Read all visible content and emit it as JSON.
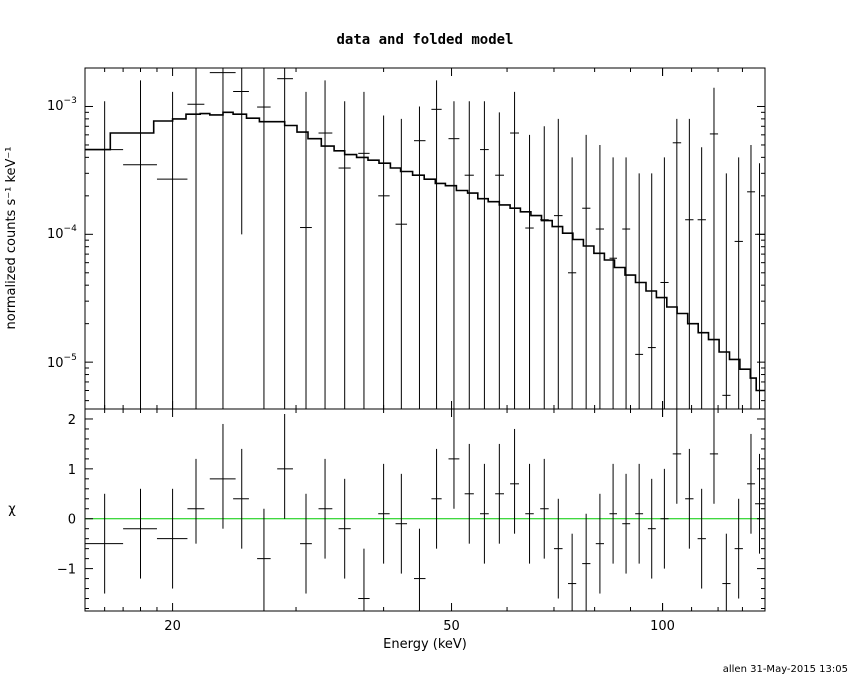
{
  "title": "data and folded model",
  "footer": "allen 31-May-2015 13:05",
  "colors": {
    "model": "#000000",
    "data": "#000000",
    "zero_line": "#00cc00",
    "frame": "#000000"
  },
  "chart_data": [
    {
      "type": "line",
      "panel": "top",
      "xlabel": "Energy (keV)",
      "ylabel": "normalized counts s⁻¹ keV⁻¹",
      "xscale": "log",
      "yscale": "log",
      "xlim": [
        15,
        140
      ],
      "ylim": [
        4.3e-06,
        0.002
      ],
      "ytick_labels": [
        {
          "value": 0.001,
          "mantissa": "10",
          "exp": "−3"
        },
        {
          "value": 0.0001,
          "mantissa": "10",
          "exp": "−4"
        },
        {
          "value": 1e-05,
          "mantissa": "10",
          "exp": "−5"
        }
      ],
      "model_steps": [
        [
          15.0,
          0.00046
        ],
        [
          16.3,
          0.00062
        ],
        [
          17.6,
          0.00062
        ],
        [
          18.8,
          0.00077
        ],
        [
          20.0,
          0.0008
        ],
        [
          20.9,
          0.00087
        ],
        [
          21.9,
          0.00088
        ],
        [
          22.6,
          0.00086
        ],
        [
          23.6,
          0.0009
        ],
        [
          24.4,
          0.00087
        ],
        [
          25.5,
          0.00081
        ],
        [
          26.6,
          0.00076
        ],
        [
          27.6,
          0.00076
        ],
        [
          28.9,
          0.00071
        ],
        [
          30.1,
          0.00063
        ],
        [
          31.2,
          0.00056
        ],
        [
          32.6,
          0.00049
        ],
        [
          34.0,
          0.00045
        ],
        [
          35.2,
          0.00042
        ],
        [
          36.6,
          0.0004
        ],
        [
          38.0,
          0.00038
        ],
        [
          39.4,
          0.00036
        ],
        [
          40.9,
          0.00033
        ],
        [
          42.3,
          0.00031
        ],
        [
          44.0,
          0.00029
        ],
        [
          45.7,
          0.00027
        ],
        [
          47.4,
          0.00025
        ],
        [
          49.0,
          0.00024
        ],
        [
          50.8,
          0.00022
        ],
        [
          52.7,
          0.00021
        ],
        [
          54.5,
          0.00019
        ],
        [
          56.4,
          0.00018
        ],
        [
          58.5,
          0.00017
        ],
        [
          60.6,
          0.00016
        ],
        [
          62.7,
          0.00015
        ],
        [
          64.9,
          0.00014
        ],
        [
          67.2,
          0.000128
        ],
        [
          69.6,
          0.000115
        ],
        [
          72.0,
          0.000102
        ],
        [
          74.5,
          9.1e-05
        ],
        [
          77.1,
          8.1e-05
        ],
        [
          79.8,
          7.1e-05
        ],
        [
          82.6,
          6.3e-05
        ],
        [
          85.4,
          5.5e-05
        ],
        [
          88.4,
          4.8e-05
        ],
        [
          91.5,
          4.2e-05
        ],
        [
          94.7,
          3.6e-05
        ],
        [
          98.0,
          3.2e-05
        ],
        [
          101.4,
          2.7e-05
        ],
        [
          104.9,
          2.4e-05
        ],
        [
          108.6,
          2e-05
        ],
        [
          112.4,
          1.7e-05
        ],
        [
          116.3,
          1.5e-05
        ],
        [
          120.4,
          1.2e-05
        ],
        [
          124.6,
          1.05e-05
        ],
        [
          128.9,
          8.8e-06
        ],
        [
          133.4,
          7.5e-06
        ],
        [
          136.0,
          6e-06
        ],
        [
          140.0,
          5e-06
        ]
      ],
      "points": [
        {
          "x": 16.0,
          "xlo": 15.0,
          "xhi": 17.0,
          "y": 0.00046,
          "ylo": 4.3e-06,
          "yhi": 0.0011
        },
        {
          "x": 18.0,
          "xlo": 17.0,
          "xhi": 19.0,
          "y": 0.00035,
          "ylo": 4.3e-06,
          "yhi": 0.0016
        },
        {
          "x": 20.0,
          "xlo": 19.0,
          "xhi": 21.0,
          "y": 0.00027,
          "ylo": 4.3e-06,
          "yhi": 0.0013
        },
        {
          "x": 21.6,
          "xlo": 21.0,
          "xhi": 22.2,
          "y": 0.00104,
          "ylo": 4.3e-06,
          "yhi": 0.002
        },
        {
          "x": 23.6,
          "xlo": 22.6,
          "xhi": 24.6,
          "y": 0.00184,
          "ylo": 4.3e-06,
          "yhi": 0.002
        },
        {
          "x": 25.1,
          "xlo": 24.4,
          "xhi": 25.7,
          "y": 0.00131,
          "ylo": 0.0001,
          "yhi": 0.002
        },
        {
          "x": 27.0,
          "xlo": 26.4,
          "xhi": 27.6,
          "y": 0.00099,
          "ylo": 4.3e-06,
          "yhi": 0.002
        },
        {
          "x": 28.9,
          "xlo": 28.2,
          "xhi": 29.7,
          "y": 0.00165,
          "ylo": 4.3e-06,
          "yhi": 0.002
        },
        {
          "x": 31.0,
          "xlo": 30.4,
          "xhi": 31.6,
          "y": 0.000113,
          "ylo": 4.3e-06,
          "yhi": 0.0013
        },
        {
          "x": 33.0,
          "xlo": 32.3,
          "xhi": 33.8,
          "y": 0.00062,
          "ylo": 4.3e-06,
          "yhi": 0.0016
        },
        {
          "x": 35.2,
          "xlo": 34.5,
          "xhi": 35.9,
          "y": 0.00033,
          "ylo": 4.3e-06,
          "yhi": 0.0011
        },
        {
          "x": 37.5,
          "xlo": 36.8,
          "xhi": 38.2,
          "y": 0.00043,
          "ylo": 4.3e-06,
          "yhi": 0.0013
        },
        {
          "x": 40.0,
          "xlo": 39.3,
          "xhi": 40.8,
          "y": 0.0002,
          "ylo": 4.3e-06,
          "yhi": 0.00085
        },
        {
          "x": 42.4,
          "xlo": 41.6,
          "xhi": 43.2,
          "y": 0.00012,
          "ylo": 4.3e-06,
          "yhi": 0.0008
        },
        {
          "x": 45.0,
          "xlo": 44.2,
          "xhi": 45.9,
          "y": 0.00054,
          "ylo": 4.3e-06,
          "yhi": 0.001
        },
        {
          "x": 47.6,
          "xlo": 46.8,
          "xhi": 48.4,
          "y": 0.00095,
          "ylo": 4.3e-06,
          "yhi": 0.0016
        },
        {
          "x": 50.4,
          "xlo": 49.5,
          "xhi": 51.3,
          "y": 0.00056,
          "ylo": 4.3e-06,
          "yhi": 0.0011
        },
        {
          "x": 53.0,
          "xlo": 52.2,
          "xhi": 53.8,
          "y": 0.00029,
          "ylo": 4.3e-06,
          "yhi": 0.0011
        },
        {
          "x": 55.7,
          "xlo": 54.9,
          "xhi": 56.5,
          "y": 0.00046,
          "ylo": 4.3e-06,
          "yhi": 0.0011
        },
        {
          "x": 58.5,
          "xlo": 57.7,
          "xhi": 59.4,
          "y": 0.00029,
          "ylo": 4.3e-06,
          "yhi": 0.0009
        },
        {
          "x": 61.5,
          "xlo": 60.6,
          "xhi": 62.4,
          "y": 0.00062,
          "ylo": 4.3e-06,
          "yhi": 0.0013
        },
        {
          "x": 64.6,
          "xlo": 63.7,
          "xhi": 65.5,
          "y": 0.000112,
          "ylo": 4.3e-06,
          "yhi": 0.0006
        },
        {
          "x": 67.8,
          "xlo": 66.9,
          "xhi": 68.8,
          "y": 0.00013,
          "ylo": 4.3e-06,
          "yhi": 0.0007
        },
        {
          "x": 71.0,
          "xlo": 70.0,
          "xhi": 72.0,
          "y": 0.00014,
          "ylo": 4.3e-06,
          "yhi": 0.0008
        },
        {
          "x": 74.3,
          "xlo": 73.3,
          "xhi": 75.3,
          "y": 5e-05,
          "ylo": 4.3e-06,
          "yhi": 0.0004
        },
        {
          "x": 77.8,
          "xlo": 76.8,
          "xhi": 78.9,
          "y": 0.00016,
          "ylo": 4.3e-06,
          "yhi": 0.0006
        },
        {
          "x": 81.4,
          "xlo": 80.3,
          "xhi": 82.5,
          "y": 0.00011,
          "ylo": 4.3e-06,
          "yhi": 0.0005
        },
        {
          "x": 85.0,
          "xlo": 84.0,
          "xhi": 86.1,
          "y": 6.5e-05,
          "ylo": 4.3e-06,
          "yhi": 0.0004
        },
        {
          "x": 88.7,
          "xlo": 87.6,
          "xhi": 89.9,
          "y": 0.00011,
          "ylo": 4.3e-06,
          "yhi": 0.0004
        },
        {
          "x": 92.6,
          "xlo": 91.4,
          "xhi": 93.8,
          "y": 1.15e-05,
          "ylo": 4.3e-06,
          "yhi": 0.0003
        },
        {
          "x": 96.5,
          "xlo": 95.3,
          "xhi": 97.8,
          "y": 1.3e-05,
          "ylo": 4.3e-06,
          "yhi": 0.0003
        },
        {
          "x": 100.6,
          "xlo": 99.3,
          "xhi": 102.0,
          "y": 4.2e-05,
          "ylo": 4.3e-06,
          "yhi": 0.0004
        },
        {
          "x": 104.8,
          "xlo": 103.4,
          "xhi": 106.3,
          "y": 0.00052,
          "ylo": 4.3e-06,
          "yhi": 0.0008
        },
        {
          "x": 109.2,
          "xlo": 107.7,
          "xhi": 110.7,
          "y": 0.00013,
          "ylo": 4.3e-06,
          "yhi": 0.0008
        },
        {
          "x": 113.7,
          "xlo": 112.2,
          "xhi": 115.3,
          "y": 0.00013,
          "ylo": 4.3e-06,
          "yhi": 0.00048
        },
        {
          "x": 118.4,
          "xlo": 116.8,
          "xhi": 120.0,
          "y": 0.00061,
          "ylo": 4.3e-06,
          "yhi": 0.0014
        },
        {
          "x": 123.3,
          "xlo": 121.7,
          "xhi": 125.0,
          "y": 5.5e-06,
          "ylo": 4.3e-06,
          "yhi": 0.0003
        },
        {
          "x": 128.4,
          "xlo": 126.7,
          "xhi": 130.2,
          "y": 8.8e-05,
          "ylo": 4.3e-06,
          "yhi": 0.0004
        },
        {
          "x": 133.7,
          "xlo": 132.0,
          "xhi": 135.5,
          "y": 0.000215,
          "ylo": 4.3e-06,
          "yhi": 0.0005
        },
        {
          "x": 137.5,
          "xlo": 135.5,
          "xhi": 140.0,
          "y": 0.0001,
          "ylo": 4.3e-06,
          "yhi": 0.00036
        }
      ]
    },
    {
      "type": "scatter",
      "panel": "bottom",
      "xlabel": "Energy (keV)",
      "ylabel": "χ",
      "xscale": "log",
      "xlim": [
        15,
        140
      ],
      "ylim": [
        -1.85,
        2.2
      ],
      "ytick_labels": [
        "2",
        "1",
        "0",
        "−1"
      ],
      "ytick_values": [
        2,
        1,
        0,
        -1
      ],
      "xtick_labels": [
        "20",
        "50",
        "100"
      ],
      "xtick_values": [
        20,
        50,
        100
      ],
      "zero_line": 0,
      "points": [
        {
          "x": 16.0,
          "xlo": 15.0,
          "xhi": 17.0,
          "y": -0.5,
          "ylo": -1.5,
          "yhi": 0.5
        },
        {
          "x": 18.0,
          "xlo": 17.0,
          "xhi": 19.0,
          "y": -0.2,
          "ylo": -1.2,
          "yhi": 0.6
        },
        {
          "x": 20.0,
          "xlo": 19.0,
          "xhi": 21.0,
          "y": -0.4,
          "ylo": -1.4,
          "yhi": 0.6
        },
        {
          "x": 21.6,
          "xlo": 21.0,
          "xhi": 22.2,
          "y": 0.2,
          "ylo": -0.5,
          "yhi": 1.2
        },
        {
          "x": 23.6,
          "xlo": 22.6,
          "xhi": 24.6,
          "y": 0.8,
          "ylo": -0.2,
          "yhi": 1.9
        },
        {
          "x": 25.1,
          "xlo": 24.4,
          "xhi": 25.7,
          "y": 0.4,
          "ylo": -0.6,
          "yhi": 1.4
        },
        {
          "x": 27.0,
          "xlo": 26.4,
          "xhi": 27.6,
          "y": -0.8,
          "ylo": -1.85,
          "yhi": 0.2
        },
        {
          "x": 28.9,
          "xlo": 28.2,
          "xhi": 29.7,
          "y": 1.0,
          "ylo": 0.0,
          "yhi": 2.1
        },
        {
          "x": 31.0,
          "xlo": 30.4,
          "xhi": 31.6,
          "y": -0.5,
          "ylo": -1.5,
          "yhi": 0.5
        },
        {
          "x": 33.0,
          "xlo": 32.3,
          "xhi": 33.8,
          "y": 0.2,
          "ylo": -0.8,
          "yhi": 1.2
        },
        {
          "x": 35.2,
          "xlo": 34.5,
          "xhi": 35.9,
          "y": -0.2,
          "ylo": -1.2,
          "yhi": 0.8
        },
        {
          "x": 37.5,
          "xlo": 36.8,
          "xhi": 38.2,
          "y": -1.6,
          "ylo": -1.85,
          "yhi": -0.6
        },
        {
          "x": 40.0,
          "xlo": 39.3,
          "xhi": 40.8,
          "y": 0.1,
          "ylo": -0.9,
          "yhi": 1.1
        },
        {
          "x": 42.4,
          "xlo": 41.6,
          "xhi": 43.2,
          "y": -0.1,
          "ylo": -1.1,
          "yhi": 0.9
        },
        {
          "x": 45.0,
          "xlo": 44.2,
          "xhi": 45.9,
          "y": -1.2,
          "ylo": -1.85,
          "yhi": -0.2
        },
        {
          "x": 47.6,
          "xlo": 46.8,
          "xhi": 48.4,
          "y": 0.4,
          "ylo": -0.6,
          "yhi": 1.4
        },
        {
          "x": 50.4,
          "xlo": 49.5,
          "xhi": 51.3,
          "y": 1.2,
          "ylo": 0.2,
          "yhi": 2.2
        },
        {
          "x": 53.0,
          "xlo": 52.2,
          "xhi": 53.8,
          "y": 0.5,
          "ylo": -0.5,
          "yhi": 1.5
        },
        {
          "x": 55.7,
          "xlo": 54.9,
          "xhi": 56.5,
          "y": 0.1,
          "ylo": -0.9,
          "yhi": 1.1
        },
        {
          "x": 58.5,
          "xlo": 57.7,
          "xhi": 59.4,
          "y": 0.5,
          "ylo": -0.5,
          "yhi": 1.5
        },
        {
          "x": 61.5,
          "xlo": 60.6,
          "xhi": 62.4,
          "y": 0.7,
          "ylo": -0.3,
          "yhi": 1.8
        },
        {
          "x": 64.6,
          "xlo": 63.7,
          "xhi": 65.5,
          "y": 0.1,
          "ylo": -0.9,
          "yhi": 1.1
        },
        {
          "x": 67.8,
          "xlo": 66.9,
          "xhi": 68.8,
          "y": 0.2,
          "ylo": -0.8,
          "yhi": 1.2
        },
        {
          "x": 71.0,
          "xlo": 70.0,
          "xhi": 72.0,
          "y": -0.6,
          "ylo": -1.6,
          "yhi": 0.4
        },
        {
          "x": 74.3,
          "xlo": 73.3,
          "xhi": 75.3,
          "y": -1.3,
          "ylo": -1.85,
          "yhi": -0.3
        },
        {
          "x": 77.8,
          "xlo": 76.8,
          "xhi": 78.9,
          "y": -0.9,
          "ylo": -1.85,
          "yhi": 0.1
        },
        {
          "x": 81.4,
          "xlo": 80.3,
          "xhi": 82.5,
          "y": -0.5,
          "ylo": -1.5,
          "yhi": 0.5
        },
        {
          "x": 85.0,
          "xlo": 84.0,
          "xhi": 86.1,
          "y": 0.1,
          "ylo": -0.9,
          "yhi": 1.1
        },
        {
          "x": 88.7,
          "xlo": 87.6,
          "xhi": 89.9,
          "y": -0.1,
          "ylo": -1.1,
          "yhi": 0.9
        },
        {
          "x": 92.6,
          "xlo": 91.4,
          "xhi": 93.8,
          "y": 0.1,
          "ylo": -0.9,
          "yhi": 1.1
        },
        {
          "x": 96.5,
          "xlo": 95.3,
          "xhi": 97.8,
          "y": -0.2,
          "ylo": -1.2,
          "yhi": 0.8
        },
        {
          "x": 100.6,
          "xlo": 99.3,
          "xhi": 102.0,
          "y": 0.0,
          "ylo": -1.0,
          "yhi": 1.0
        },
        {
          "x": 104.8,
          "xlo": 103.4,
          "xhi": 106.3,
          "y": 1.3,
          "ylo": 0.3,
          "yhi": 2.2
        },
        {
          "x": 109.2,
          "xlo": 107.7,
          "xhi": 110.7,
          "y": 0.4,
          "ylo": -0.6,
          "yhi": 1.4
        },
        {
          "x": 113.7,
          "xlo": 112.2,
          "xhi": 115.3,
          "y": -0.4,
          "ylo": -1.4,
          "yhi": 0.6
        },
        {
          "x": 118.4,
          "xlo": 116.8,
          "xhi": 120.0,
          "y": 1.3,
          "ylo": 0.3,
          "yhi": 2.2
        },
        {
          "x": 123.3,
          "xlo": 121.7,
          "xhi": 125.0,
          "y": -1.3,
          "ylo": -1.85,
          "yhi": -0.3
        },
        {
          "x": 128.4,
          "xlo": 126.7,
          "xhi": 130.2,
          "y": -0.6,
          "ylo": -1.6,
          "yhi": 0.4
        },
        {
          "x": 133.7,
          "xlo": 132.0,
          "xhi": 135.5,
          "y": 0.7,
          "ylo": -0.3,
          "yhi": 1.7
        },
        {
          "x": 137.5,
          "xlo": 135.5,
          "xhi": 140.0,
          "y": 0.3,
          "ylo": -0.7,
          "yhi": 1.3
        }
      ]
    }
  ]
}
